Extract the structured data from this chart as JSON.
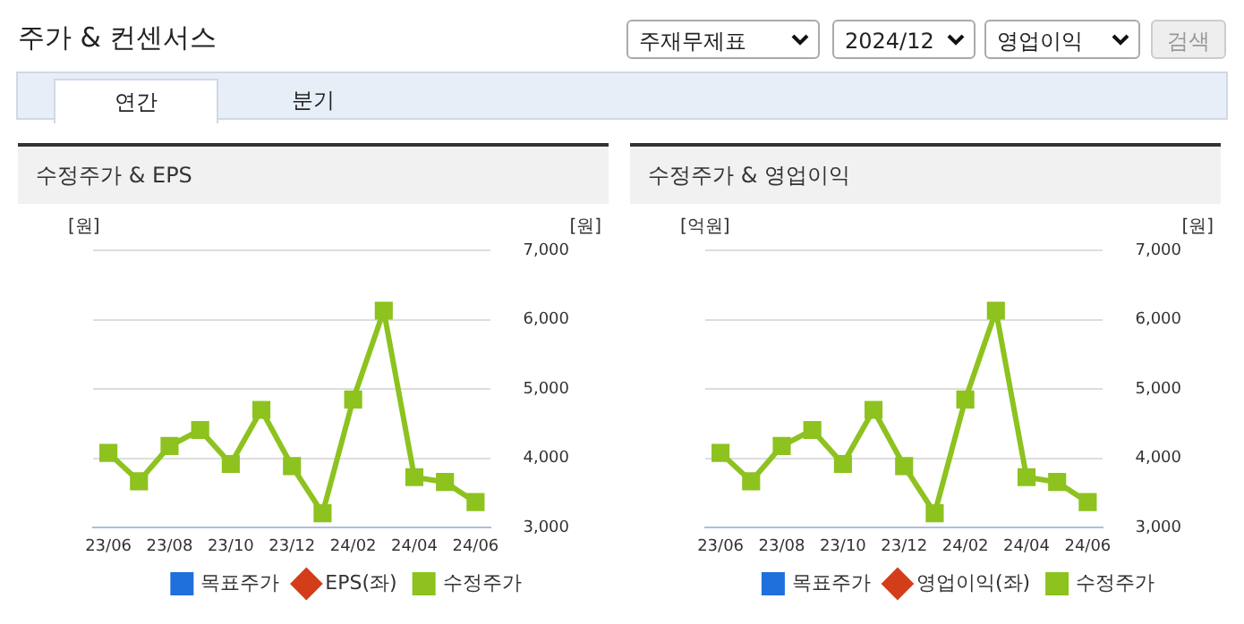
{
  "chart_data": [
    {
      "type": "other",
      "title": "주가 & 컨센서스",
      "annotations": [
        "주재무제표",
        "2024/12",
        "영업이익",
        "검색",
        "연간",
        "분기"
      ]
    },
    {
      "type": "line",
      "title": "수정주가 & EPS",
      "ylabel": "[원]",
      "y2label": "[원]",
      "categories": [
        "23/06",
        null,
        "23/08",
        null,
        "23/10",
        null,
        "23/12",
        null,
        "24/02",
        null,
        "24/04",
        null,
        "24/06"
      ],
      "series": [
        {
          "name": "목표주가",
          "color": "#1f6fdc",
          "marker": "square",
          "values": [
            null,
            null,
            null,
            null,
            null,
            null,
            null,
            null,
            null,
            null,
            null,
            null,
            null
          ]
        },
        {
          "name": "EPS(좌)",
          "color": "#d33d1a",
          "marker": "diamond",
          "values": [
            null,
            null,
            null,
            null,
            null,
            null,
            null,
            null,
            null,
            null,
            null,
            null,
            null
          ]
        },
        {
          "name": "수정주가",
          "color": "#8dc21f",
          "marker": "square",
          "axis": "y2",
          "values": [
            4080,
            3670,
            4180,
            4410,
            3920,
            4700,
            3890,
            3210,
            4850,
            6130,
            3730,
            3660,
            3370
          ]
        }
      ],
      "y2lim": [
        3000,
        7000
      ],
      "y2ticks": [
        {
          "value": 3000,
          "label": "3,000"
        },
        {
          "value": 4000,
          "label": "4,000"
        },
        {
          "value": 5000,
          "label": "5,000"
        },
        {
          "value": 6000,
          "label": "6,000"
        },
        {
          "value": 7000,
          "label": "7,000"
        }
      ],
      "grid": "y",
      "legend": "bottom",
      "line_style": "solid"
    },
    {
      "type": "line",
      "title": "수정주가 & 영업이익",
      "ylabel": "[억원]",
      "y2label": "[원]",
      "categories": [
        "23/06",
        null,
        "23/08",
        null,
        "23/10",
        null,
        "23/12",
        null,
        "24/02",
        null,
        "24/04",
        null,
        "24/06"
      ],
      "series": [
        {
          "name": "목표주가",
          "color": "#1f6fdc",
          "marker": "square",
          "values": [
            null,
            null,
            null,
            null,
            null,
            null,
            null,
            null,
            null,
            null,
            null,
            null,
            null
          ]
        },
        {
          "name": "영업이익(좌)",
          "color": "#d33d1a",
          "marker": "diamond",
          "values": [
            null,
            null,
            null,
            null,
            null,
            null,
            null,
            null,
            null,
            null,
            null,
            null,
            null
          ]
        },
        {
          "name": "수정주가",
          "color": "#8dc21f",
          "marker": "square",
          "axis": "y2",
          "values": [
            4080,
            3670,
            4180,
            4410,
            3920,
            4700,
            3890,
            3210,
            4850,
            6130,
            3730,
            3660,
            3370
          ]
        }
      ],
      "y2lim": [
        3000,
        7000
      ],
      "y2ticks": [
        {
          "value": 3000,
          "label": "3,000"
        },
        {
          "value": 4000,
          "label": "4,000"
        },
        {
          "value": 5000,
          "label": "5,000"
        },
        {
          "value": 6000,
          "label": "6,000"
        },
        {
          "value": 7000,
          "label": "7,000"
        }
      ],
      "grid": "y",
      "legend": "bottom",
      "line_style": "solid"
    }
  ]
}
